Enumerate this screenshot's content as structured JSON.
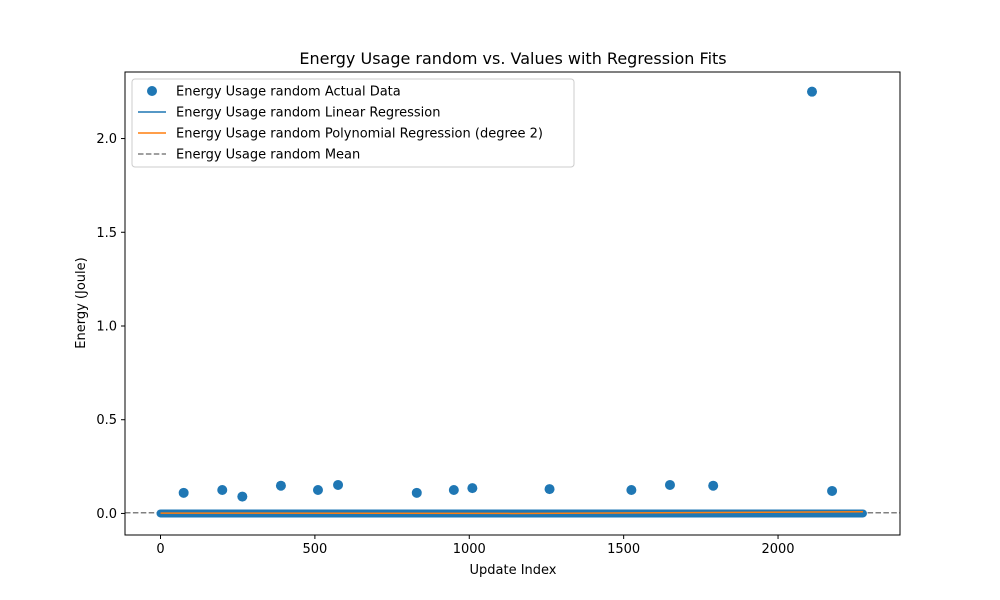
{
  "chart_data": {
    "type": "scatter",
    "title": "Energy Usage random vs. Values with Regression Fits",
    "xlabel": "Update Index",
    "ylabel": "Energy (Joule)",
    "xlim": [
      -115,
      2395
    ],
    "ylim": [
      -0.115,
      2.355
    ],
    "xticks": [
      0,
      500,
      1000,
      1500,
      2000
    ],
    "yticks": [
      0.0,
      0.5,
      1.0,
      1.5,
      2.0
    ],
    "xtick_labels": [
      "0",
      "500",
      "1000",
      "1500",
      "2000"
    ],
    "ytick_labels": [
      "0.0",
      "0.5",
      "1.0",
      "1.5",
      "2.0"
    ],
    "grid": false,
    "legend_position": "top-left",
    "baseline": {
      "x_start": 0,
      "x_end": 2275,
      "y": 0.0
    },
    "series": [
      {
        "name": "Energy Usage random Actual Data",
        "kind": "scatter",
        "color": "#1f77b4",
        "points": [
          [
            75,
            0.11
          ],
          [
            200,
            0.125
          ],
          [
            265,
            0.09
          ],
          [
            390,
            0.148
          ],
          [
            510,
            0.125
          ],
          [
            575,
            0.152
          ],
          [
            830,
            0.11
          ],
          [
            950,
            0.125
          ],
          [
            1010,
            0.135
          ],
          [
            1260,
            0.13
          ],
          [
            1525,
            0.125
          ],
          [
            1650,
            0.152
          ],
          [
            1790,
            0.148
          ],
          [
            2110,
            2.25
          ],
          [
            2175,
            0.12
          ]
        ]
      },
      {
        "name": "Energy Usage random Linear Regression",
        "kind": "line",
        "color": "#1f77b4",
        "points": [
          [
            0,
            0.001
          ],
          [
            2275,
            0.003
          ]
        ]
      },
      {
        "name": "Energy Usage random Polynomial Regression (degree 2)",
        "kind": "line",
        "color": "#ff7f0e",
        "points": [
          [
            0,
            0.002
          ],
          [
            1137,
            0.0
          ],
          [
            2275,
            0.009
          ]
        ]
      },
      {
        "name": "Energy Usage random Mean",
        "kind": "hline",
        "color": "#808080",
        "y": 0.004
      }
    ]
  }
}
